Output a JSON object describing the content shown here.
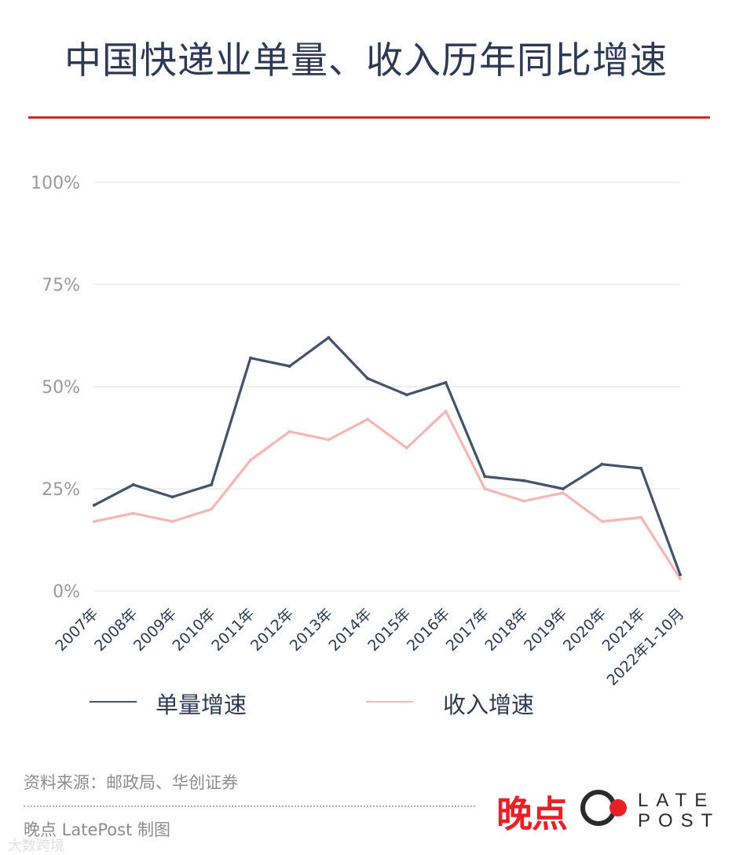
{
  "title": "中国快递业单量、收入历年同比增速",
  "legend": [
    {
      "label": "单量增速",
      "color": "#44536b"
    },
    {
      "label": "收入增速",
      "color": "#f7b6b6"
    }
  ],
  "source": "资料来源：邮政局、华创证券",
  "credit": "晚点 LatePost 制图",
  "logo": {
    "cn": "晚点",
    "en_top": "LATE",
    "en_bottom": "POST"
  },
  "watermark": "大数跨境",
  "colors": {
    "accent_red": "#d9251d",
    "grid": "#e3e6ec",
    "axis_text": "#9a9a9a",
    "category_text": "#2e3a55"
  },
  "chart_data": {
    "type": "line",
    "title": "中国快递业单量、收入历年同比增速",
    "categories": [
      "2007年",
      "2008年",
      "2009年",
      "2010年",
      "2011年",
      "2012年",
      "2013年",
      "2014年",
      "2015年",
      "2016年",
      "2017年",
      "2018年",
      "2019年",
      "2020年",
      "2021年",
      "2022年1-10月"
    ],
    "y_ticks": [
      "100%",
      "75%",
      "50%",
      "25%",
      "0%"
    ],
    "y_tick_values": [
      100,
      75,
      50,
      25,
      0
    ],
    "ylim": [
      0,
      100
    ],
    "grid": true,
    "legend_position": "bottom",
    "series": [
      {
        "name": "单量增速",
        "color": "#44536b",
        "values": [
          21,
          26,
          23,
          26,
          57,
          55,
          62,
          52,
          48,
          51,
          28,
          27,
          25,
          31,
          30,
          4
        ]
      },
      {
        "name": "收入增速",
        "color": "#f7b6b6",
        "values": [
          17,
          19,
          17,
          20,
          32,
          39,
          37,
          42,
          35,
          44,
          25,
          22,
          24,
          17,
          18,
          3
        ]
      }
    ]
  }
}
